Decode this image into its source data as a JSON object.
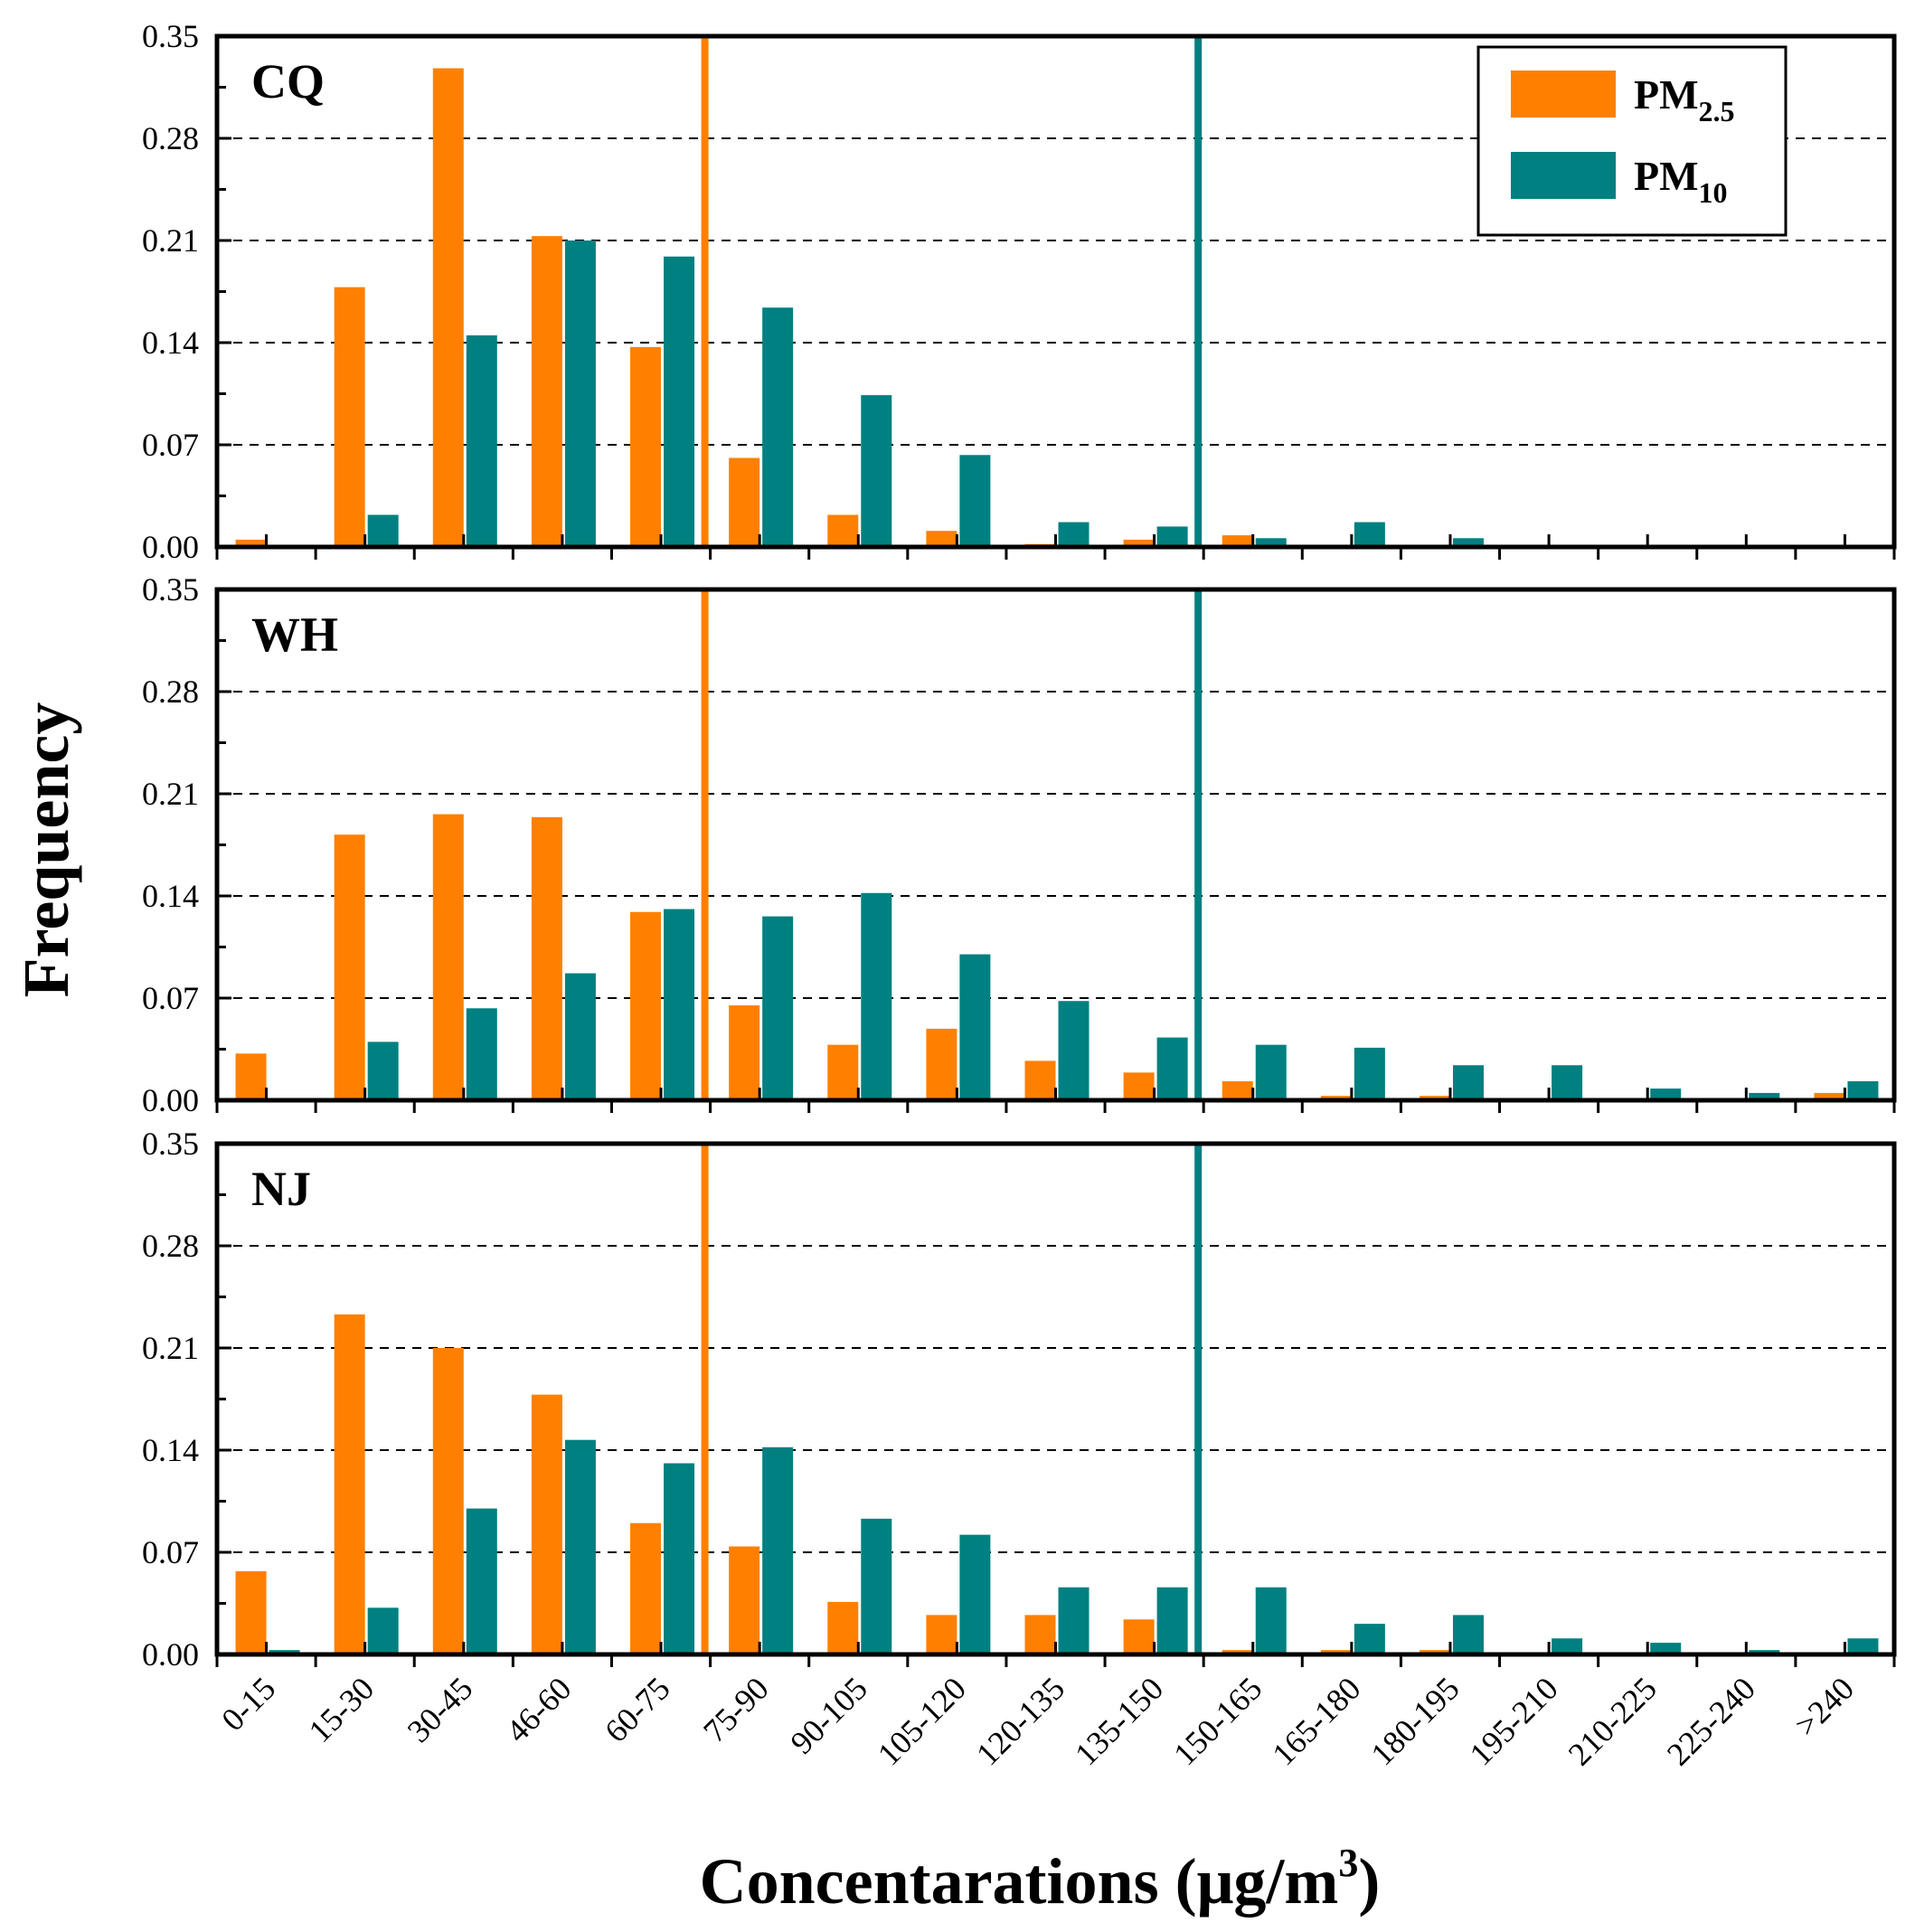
{
  "chart_data": {
    "type": "bar",
    "ylabel": "Frequency",
    "xlabel": {
      "main": "Concentarations (μg/m",
      "superscript": "3",
      "close": ")"
    },
    "ylim": [
      0,
      0.35
    ],
    "yticks": [
      "0.00",
      "0.07",
      "0.14",
      "0.21",
      "0.28",
      "0.35"
    ],
    "categories": [
      "0-15",
      "15-30",
      "30-45",
      "46-60",
      "60-75",
      "75-90",
      "90-105",
      "105-120",
      "120-135",
      "135-150",
      "150-165",
      "165-180",
      "180-195",
      "195-210",
      "210-225",
      "225-240",
      ">240"
    ],
    "colors": {
      "pm25": "#ff8000",
      "pm10": "#008080"
    },
    "legend": {
      "position": "top-right",
      "entries": [
        {
          "key": "pm25",
          "base": "PM",
          "sub": "2.5"
        },
        {
          "key": "pm10",
          "base": "PM",
          "sub": "10"
        }
      ]
    },
    "reference_lines": [
      {
        "series": "pm25",
        "x_boundary_index": 5
      },
      {
        "series": "pm10",
        "x_boundary_index": 10
      }
    ],
    "panels": [
      {
        "label": "CQ",
        "series": [
          {
            "name": "PM2.5",
            "key": "pm25",
            "values": [
              0.005,
              0.178,
              0.328,
              0.213,
              0.137,
              0.061,
              0.022,
              0.011,
              0.002,
              0.005,
              0.008,
              0,
              0,
              0,
              0,
              0,
              0
            ]
          },
          {
            "name": "PM10",
            "key": "pm10",
            "values": [
              0,
              0.022,
              0.145,
              0.21,
              0.199,
              0.164,
              0.104,
              0.063,
              0.017,
              0.014,
              0.006,
              0.017,
              0.006,
              0,
              0,
              0,
              0
            ]
          }
        ]
      },
      {
        "label": "WH",
        "series": [
          {
            "name": "PM2.5",
            "key": "pm25",
            "values": [
              0.032,
              0.182,
              0.196,
              0.194,
              0.129,
              0.065,
              0.038,
              0.049,
              0.027,
              0.019,
              0.013,
              0.003,
              0.003,
              0,
              0,
              0,
              0.005
            ]
          },
          {
            "name": "PM10",
            "key": "pm10",
            "values": [
              0,
              0.04,
              0.063,
              0.087,
              0.131,
              0.126,
              0.142,
              0.1,
              0.068,
              0.043,
              0.038,
              0.036,
              0.024,
              0.024,
              0.008,
              0.005,
              0.013
            ]
          }
        ]
      },
      {
        "label": "NJ",
        "series": [
          {
            "name": "PM2.5",
            "key": "pm25",
            "values": [
              0.057,
              0.233,
              0.21,
              0.178,
              0.09,
              0.074,
              0.036,
              0.027,
              0.027,
              0.024,
              0.003,
              0.003,
              0.003,
              0,
              0,
              0,
              0
            ]
          },
          {
            "name": "PM10",
            "key": "pm10",
            "values": [
              0.003,
              0.032,
              0.1,
              0.147,
              0.131,
              0.142,
              0.093,
              0.082,
              0.046,
              0.046,
              0.046,
              0.021,
              0.027,
              0.011,
              0.008,
              0.003,
              0.011
            ]
          }
        ]
      }
    ]
  }
}
